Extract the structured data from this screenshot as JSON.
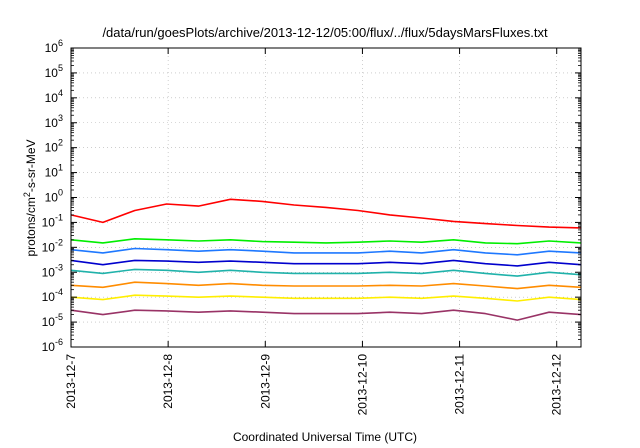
{
  "chart_data": {
    "type": "line",
    "title": "/data/run/goesPlots/archive/2013-12-12/05:00/flux/../flux/5daysMarsFluxes.txt",
    "xlabel": "Coordinated Universal Time (UTC)",
    "ylabel": "protons/cm²-s-sr-MeV",
    "ylabel_parts": {
      "base": "protons/cm",
      "sup": "2",
      "rest": "-s-sr-MeV"
    },
    "y_scale": "log",
    "ylim_exponents": [
      -6,
      6
    ],
    "y_tick_base": "10",
    "y_tick_exponents": [
      "-6",
      "-5",
      "-4",
      "-3",
      "-2",
      "-1",
      "0",
      "1",
      "2",
      "3",
      "4",
      "5",
      "6"
    ],
    "xlim": [
      "2013-12-07",
      "2013-12-12 06:00"
    ],
    "x_ticks": [
      "2013-12-7",
      "2013-12-8",
      "2013-12-9",
      "2013-12-10",
      "2013-12-11",
      "2013-12-12"
    ],
    "grid": true,
    "legend": "none",
    "series": [
      {
        "color": "#ff0000",
        "values": [
          0.2,
          0.1,
          0.3,
          0.55,
          0.45,
          0.85,
          0.7,
          0.5,
          0.4,
          0.3,
          0.2,
          0.15,
          0.11,
          0.09,
          0.075,
          0.065,
          0.06
        ]
      },
      {
        "color": "#00ee00",
        "values": [
          0.02,
          0.015,
          0.022,
          0.02,
          0.018,
          0.02,
          0.017,
          0.016,
          0.015,
          0.016,
          0.018,
          0.016,
          0.02,
          0.015,
          0.014,
          0.018,
          0.015
        ]
      },
      {
        "color": "#1e78ff",
        "values": [
          0.008,
          0.006,
          0.009,
          0.008,
          0.007,
          0.008,
          0.007,
          0.006,
          0.006,
          0.006,
          0.007,
          0.006,
          0.008,
          0.006,
          0.005,
          0.007,
          0.006
        ]
      },
      {
        "color": "#0000cd",
        "values": [
          0.003,
          0.002,
          0.003,
          0.0028,
          0.0025,
          0.0028,
          0.0025,
          0.0022,
          0.0022,
          0.0022,
          0.0025,
          0.0022,
          0.003,
          0.0022,
          0.0018,
          0.0025,
          0.002
        ]
      },
      {
        "color": "#20b2aa",
        "values": [
          0.0012,
          0.0009,
          0.0013,
          0.0012,
          0.001,
          0.0012,
          0.001,
          0.0009,
          0.0009,
          0.0009,
          0.001,
          0.0009,
          0.0012,
          0.0009,
          0.0007,
          0.001,
          0.0008
        ]
      },
      {
        "color": "#ff8c00",
        "values": [
          0.0003,
          0.00025,
          0.0004,
          0.00035,
          0.0003,
          0.00035,
          0.0003,
          0.00028,
          0.00028,
          0.00028,
          0.0003,
          0.00028,
          0.00035,
          0.00028,
          0.00022,
          0.0003,
          0.00025
        ]
      },
      {
        "color": "#ffee00",
        "values": [
          0.0001,
          8e-05,
          0.00012,
          0.00011,
          0.0001,
          0.00011,
          0.0001,
          9e-05,
          9e-05,
          9e-05,
          0.0001,
          9e-05,
          0.00011,
          9e-05,
          7e-05,
          0.0001,
          8e-05
        ]
      },
      {
        "color": "#993366",
        "values": [
          3e-05,
          2e-05,
          3e-05,
          2.8e-05,
          2.5e-05,
          2.8e-05,
          2.5e-05,
          2.2e-05,
          2.2e-05,
          2.2e-05,
          2.5e-05,
          2.2e-05,
          3e-05,
          2.2e-05,
          1.2e-05,
          2.5e-05,
          2e-05
        ]
      }
    ]
  }
}
